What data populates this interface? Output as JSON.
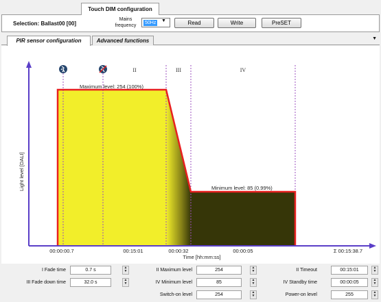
{
  "window": {
    "tab_title": "Touch DIM configuration"
  },
  "toolbar": {
    "selection": "Selection: Ballast00 [00]",
    "mains_label_line1": "Mains",
    "mains_label_line2": "frequency",
    "frequency_value": "50Hz",
    "read_label": "Read",
    "write_label": "Write",
    "preset_label": "PreSET"
  },
  "tabs": [
    {
      "label": "PIR sensor configuration",
      "active": true
    },
    {
      "label": "Advanced functions",
      "active": false
    }
  ],
  "chart_data": {
    "type": "area",
    "ylabel": "Light level [DALI]",
    "xlabel": "Time [hh:mm:ss]",
    "phases": [
      "I",
      "II",
      "III",
      "IV"
    ],
    "annotations": [
      "Maximum level: 254 (100%)",
      "Minimum level: 85 (0.99%)"
    ],
    "x_tick_labels": [
      "00:00:00.7",
      "00:15:01",
      "00:00:32",
      "00:00:05"
    ],
    "total_label": "Σ  00:15:38.7",
    "levels": {
      "max": 254,
      "min": 85
    },
    "colors": {
      "fill_high": "#f2ee2a",
      "fill_low": "#363608",
      "outline": "#e82020",
      "axis": "#5a3ec8",
      "phase_line": "#9b4fbf"
    }
  },
  "params": {
    "fade_time": {
      "label": "I Fade time",
      "value": "0.7 s"
    },
    "fade_down_time": {
      "label": "III Fade down time",
      "value": "32.0 s"
    },
    "maximum_level": {
      "label": "II Maximum level",
      "value": "254"
    },
    "minimum_level": {
      "label": "IV Minimum level",
      "value": "85"
    },
    "switch_on_level": {
      "label": "Switch-on level",
      "value": "254"
    },
    "timeout": {
      "label": "II Timeout",
      "value": "00:15:01"
    },
    "standby_time": {
      "label": "IV Standby time",
      "value": "00:00:05"
    },
    "power_on_level": {
      "label": "Power-on level",
      "value": "255"
    }
  }
}
